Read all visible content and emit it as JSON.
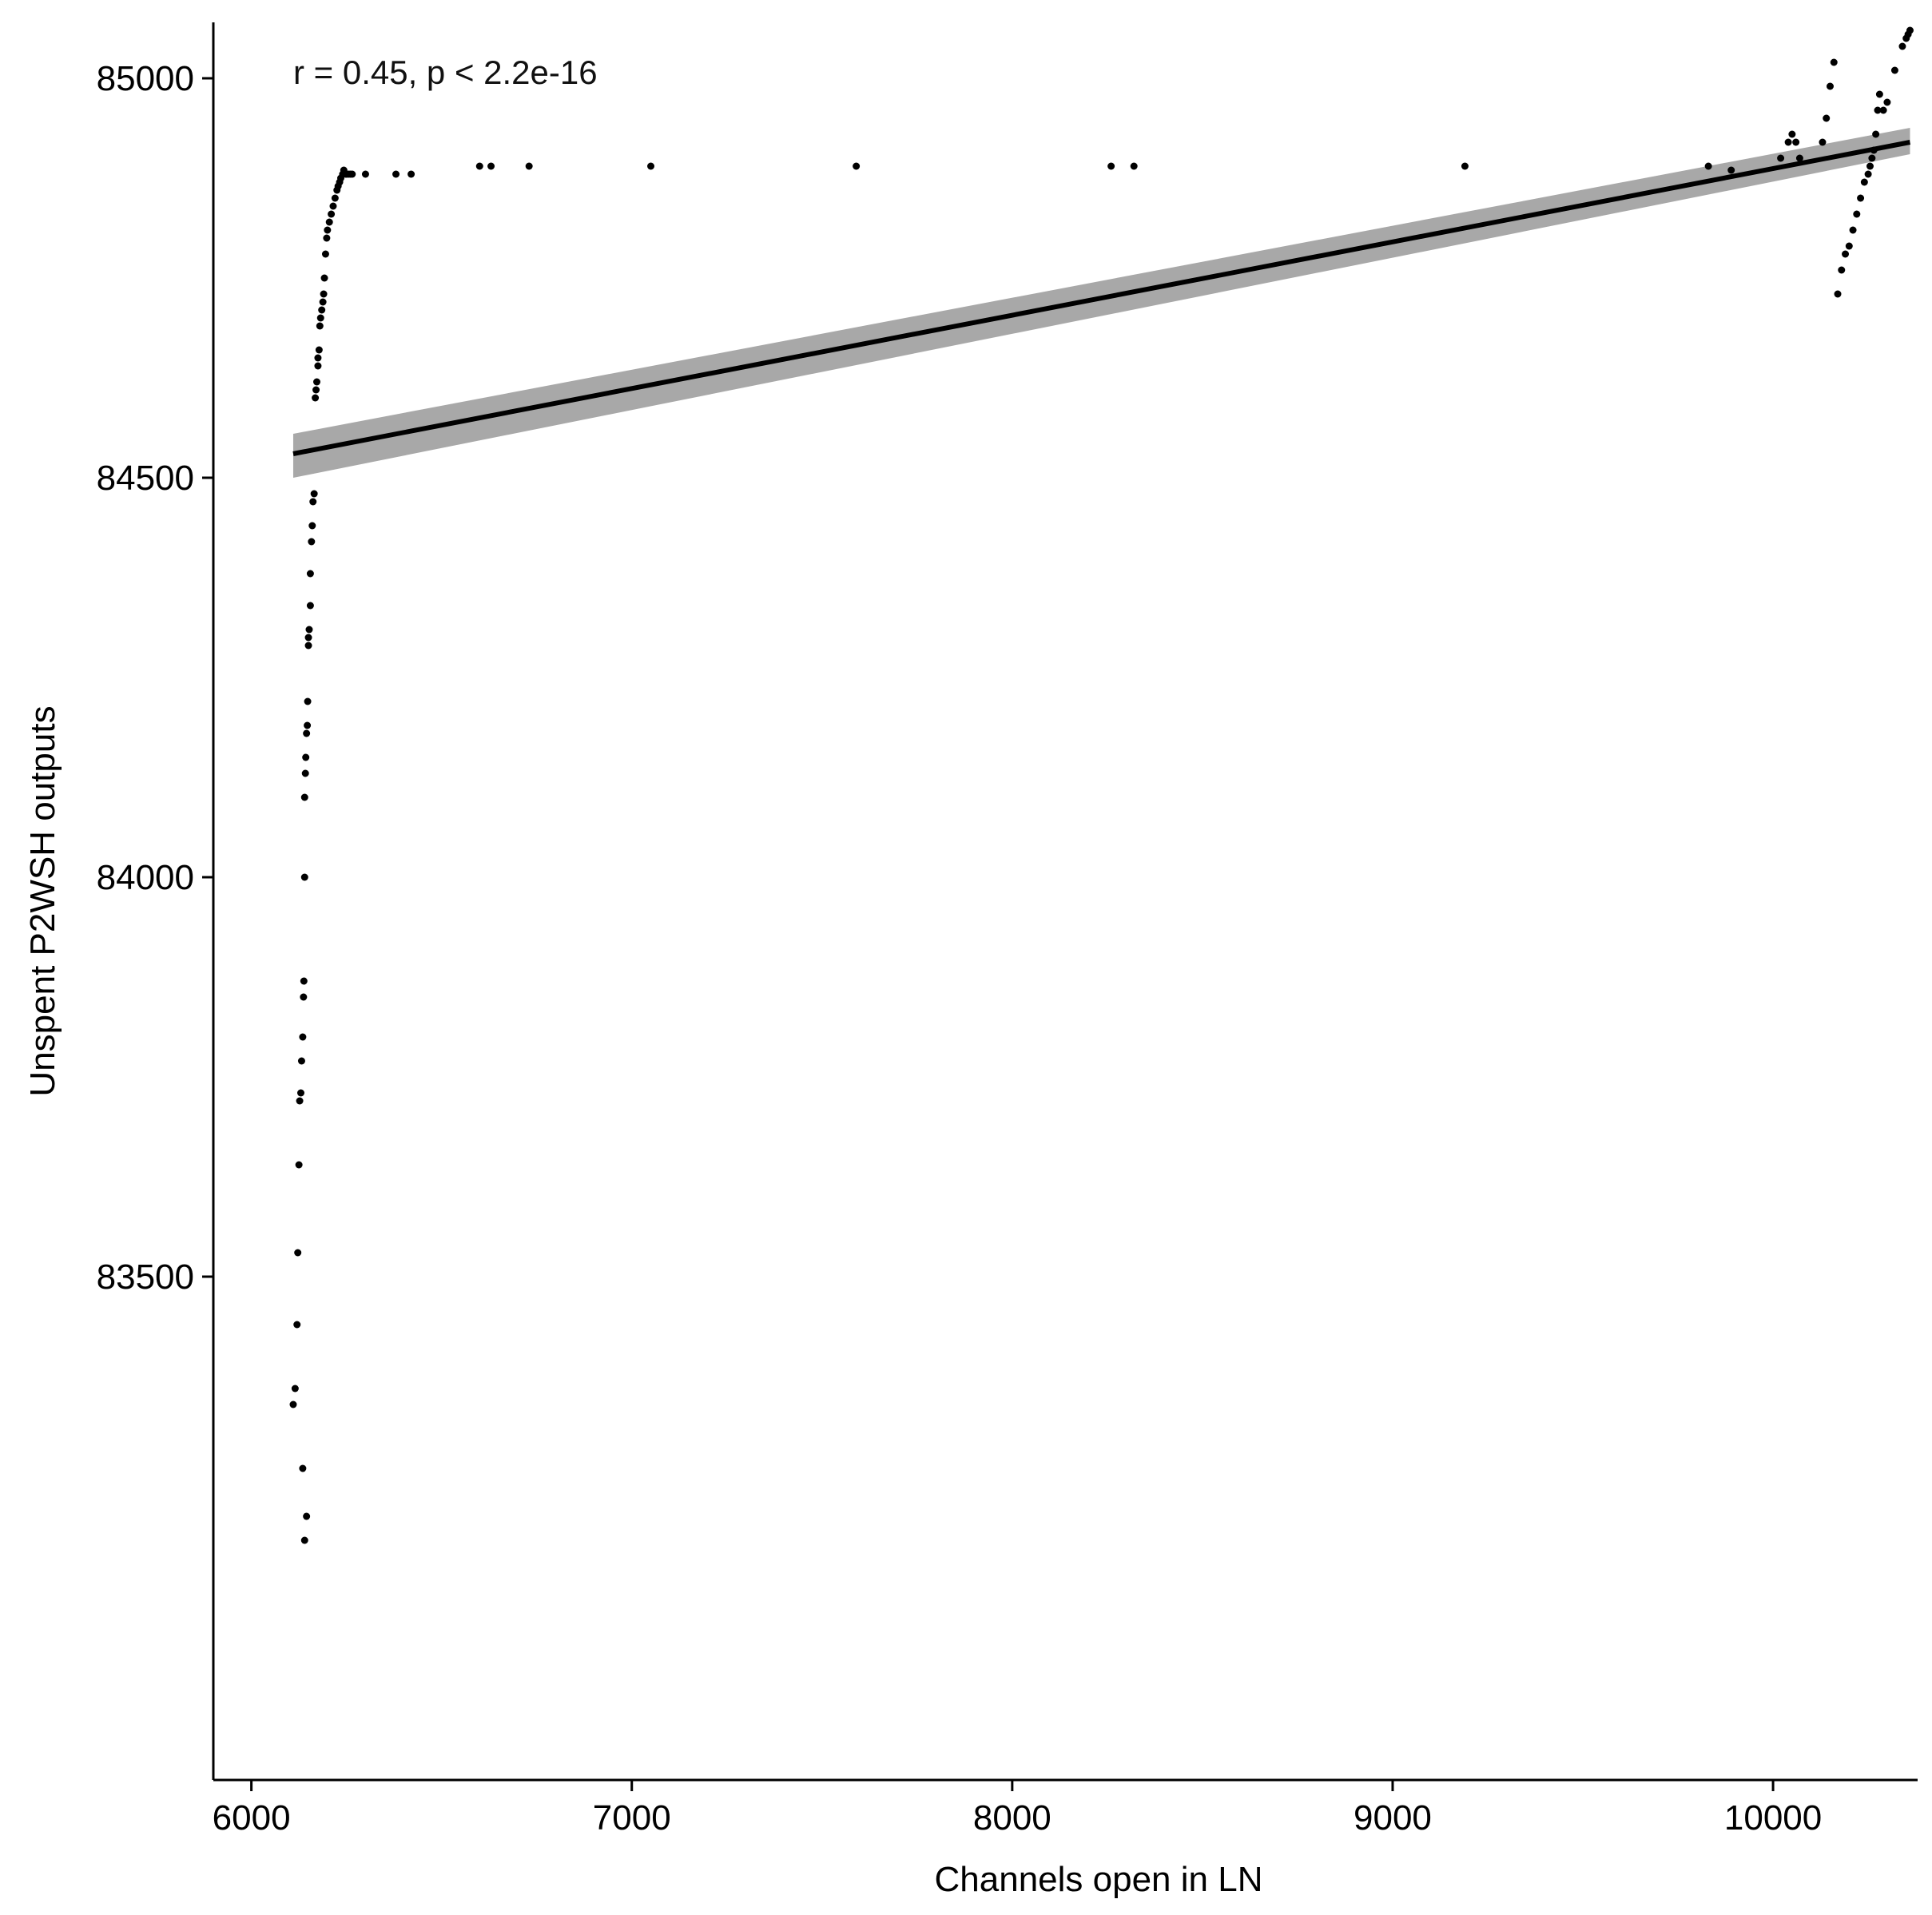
{
  "chart_data": {
    "type": "scatter",
    "title": "",
    "xlabel": "Channels open in LN",
    "ylabel": "Unspent P2WSH outputs",
    "xlim": [
      5900,
      10380
    ],
    "ylim": [
      82870,
      85070
    ],
    "x_ticks": [
      6000,
      7000,
      8000,
      9000,
      10000
    ],
    "y_ticks": [
      83500,
      84000,
      84500,
      85000
    ],
    "grid": false,
    "legend": "none",
    "annotation": "r = 0.45, p < 2.2e-16",
    "colors": {
      "points": "#000000",
      "fit_line": "#000000",
      "confidence_band": "#999999"
    },
    "regression": {
      "x": [
        6110,
        10360
      ],
      "y": [
        84530,
        84920
      ],
      "ci_lower": [
        84500,
        84905
      ],
      "ci_upper": [
        84555,
        84938
      ]
    },
    "series": [
      {
        "x": [
          6110,
          6115,
          6120,
          6122,
          6125,
          6127,
          6130,
          6132,
          6135,
          6137,
          6138,
          6140,
          6140,
          6142,
          6143,
          6145,
          6147,
          6148,
          6150,
          6150,
          6152,
          6155,
          6155,
          6158,
          6160,
          6162,
          6165,
          6168,
          6170,
          6172,
          6175,
          6175,
          6178,
          6180,
          6182,
          6185,
          6188,
          6190,
          6192,
          6195,
          6198,
          6200,
          6205,
          6210,
          6215,
          6220,
          6225,
          6228,
          6232,
          6235,
          6240,
          6243,
          6248,
          6250,
          6255,
          6260,
          6265,
          6300,
          6380,
          6420,
          6600,
          6630,
          6730,
          7050,
          7590,
          8260,
          8320,
          9190,
          9830,
          9890,
          10020,
          10040,
          10050,
          10060,
          10070,
          10130,
          10140,
          10150,
          10160,
          10170,
          10180,
          10190,
          10200,
          10210,
          10220,
          10230,
          10240,
          10250,
          10255,
          10260,
          10265,
          10270,
          10275,
          10280,
          10290,
          10300,
          10320,
          10340,
          10350,
          10355,
          10360
        ],
        "y": [
          83340,
          83360,
          83440,
          83530,
          83640,
          83720,
          83730,
          83770,
          83800,
          83850,
          83870,
          84000,
          84100,
          84130,
          84150,
          84180,
          84190,
          84220,
          84290,
          84300,
          84310,
          84340,
          84380,
          84420,
          84440,
          84470,
          84480,
          84600,
          84610,
          84620,
          84640,
          84650,
          84660,
          84690,
          84700,
          84710,
          84720,
          84730,
          84750,
          84780,
          84800,
          84810,
          84820,
          84830,
          84840,
          84850,
          84860,
          84865,
          84870,
          84875,
          84880,
          84885,
          84880,
          84880,
          84880,
          84880,
          84880,
          84880,
          84880,
          84880,
          84890,
          84890,
          84890,
          84890,
          84890,
          84890,
          84890,
          84890,
          84890,
          84885,
          84900,
          84920,
          84930,
          84920,
          84900,
          84920,
          84950,
          84990,
          85020,
          84730,
          84760,
          84780,
          84790,
          84810,
          84830,
          84850,
          84870,
          84880,
          84890,
          84900,
          84910,
          84930,
          84960,
          84980,
          84960,
          84970,
          85010,
          85040,
          85050,
          85055,
          85060
        ]
      },
      {
        "x": [
          6135,
          6140,
          6145
        ],
        "y": [
          83260,
          83170,
          83200
        ]
      }
    ]
  }
}
